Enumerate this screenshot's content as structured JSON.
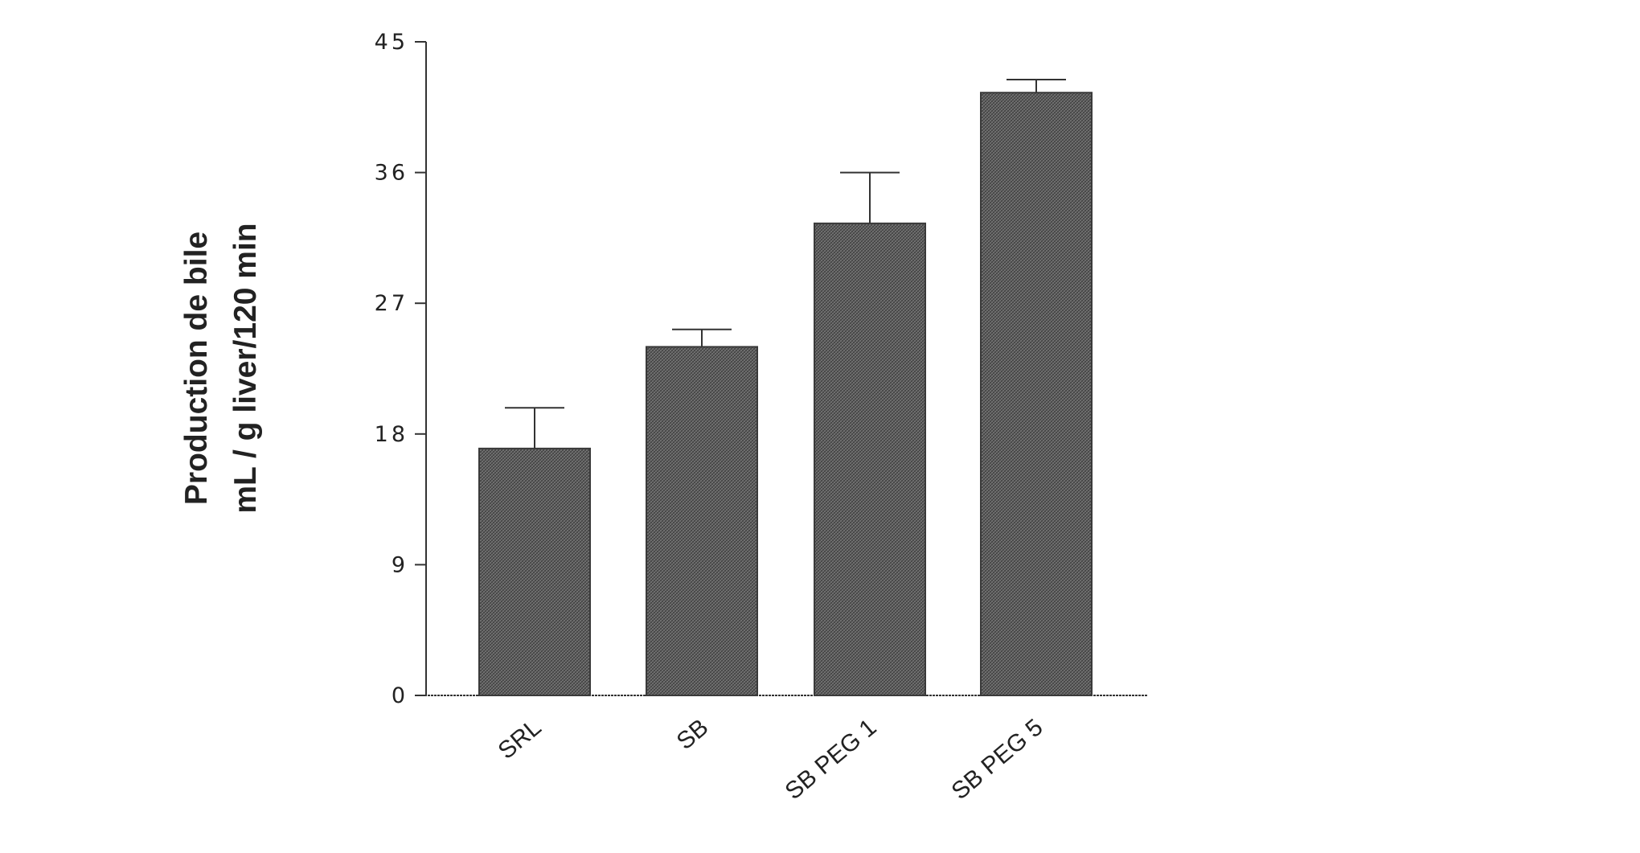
{
  "chart_data": {
    "type": "bar",
    "categories": [
      "SRL",
      "SB",
      "SB PEG 1",
      "SB PEG 5"
    ],
    "values": [
      17.0,
      24.0,
      32.5,
      41.5
    ],
    "error": [
      2.8,
      1.2,
      3.5,
      0.9
    ],
    "ylabel_lines": [
      "Production de bile",
      "mL / g liver/120 min"
    ],
    "yticks": [
      0,
      9,
      18,
      27,
      36,
      45
    ],
    "ytick_labels": [
      "0",
      "9",
      "18",
      "27",
      "36",
      "45"
    ],
    "ylim": [
      0,
      45
    ],
    "grid": false,
    "legend": "none",
    "bar_color": "#6b6b6b",
    "bar_pattern": "crosshatch"
  }
}
